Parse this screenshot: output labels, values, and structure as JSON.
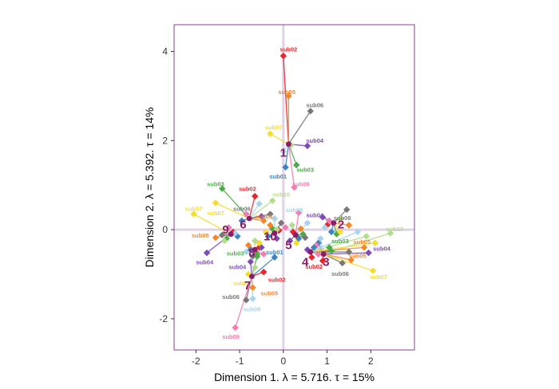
{
  "chart_data": {
    "type": "scatter",
    "xlabel": "Dimension 1.   λ = 5.716.  τ = 15%",
    "ylabel": "Dimension 2.   λ = 5.392.  τ = 14%",
    "xlim": [
      -2.5,
      3.0
    ],
    "ylim": [
      -2.7,
      4.6
    ],
    "x_ticks": [
      -2,
      -1,
      0,
      1,
      2
    ],
    "y_ticks": [
      -2,
      0,
      2,
      4
    ],
    "x_tick_labels": [
      "-2",
      "-1",
      "0",
      "1",
      "2"
    ],
    "y_tick_labels": [
      "-2",
      "0",
      "2",
      "4"
    ],
    "grid": false,
    "colors": {
      "sub01": "#3E83C4",
      "sub02": "#E8252D",
      "sub03": "#4FAA4A",
      "sub04": "#7B4BB6",
      "sub05": "#F2872B",
      "sub06": "#777777",
      "sub07": "#F5DC2E",
      "sub08": "#A8D3EA",
      "sub09": "#EE7FB0",
      "sub10": "#B4DC8E",
      "centroid": "#8B1C6A",
      "frame": "#8E3D9E",
      "origin_line": "#E2D2E8"
    },
    "points": [
      {
        "stimulus": "1",
        "cx": 0.12,
        "cy": 1.92,
        "label_x": 0.0,
        "label_y": 1.73,
        "subs": [
          {
            "sub": "sub01",
            "x": 0.05,
            "y": 1.4
          },
          {
            "sub": "sub02",
            "x": 0.0,
            "y": 3.9
          },
          {
            "sub": "sub03",
            "x": 0.3,
            "y": 1.45
          },
          {
            "sub": "sub04",
            "x": 0.55,
            "y": 1.88
          },
          {
            "sub": "sub05",
            "x": 0.12,
            "y": 3.0
          },
          {
            "sub": "sub06",
            "x": 0.62,
            "y": 2.66
          },
          {
            "sub": "sub07",
            "x": -0.3,
            "y": 2.15
          },
          {
            "sub": "sub08",
            "x": 0.0,
            "y": 1.75
          },
          {
            "sub": "sub09",
            "x": 0.25,
            "y": 0.95
          },
          {
            "sub": "sub10",
            "x": 0.18,
            "y": 1.9
          }
        ]
      },
      {
        "stimulus": "2",
        "cx": 1.15,
        "cy": 0.15,
        "label_x": 1.32,
        "label_y": 0.12,
        "subs": [
          {
            "sub": "sub01",
            "x": 1.1,
            "y": -0.05
          },
          {
            "sub": "sub02",
            "x": 1.0,
            "y": 0.1
          },
          {
            "sub": "sub03",
            "x": 1.22,
            "y": -0.1
          },
          {
            "sub": "sub04",
            "x": 0.9,
            "y": 0.28
          },
          {
            "sub": "sub05",
            "x": 1.5,
            "y": 0.1
          },
          {
            "sub": "sub06",
            "x": 1.45,
            "y": 0.45
          },
          {
            "sub": "sub07",
            "x": 1.3,
            "y": -0.05
          },
          {
            "sub": "sub08",
            "x": 0.95,
            "y": 0.05
          },
          {
            "sub": "sub09",
            "x": 1.05,
            "y": 0.2
          },
          {
            "sub": "sub10",
            "x": 1.3,
            "y": 0.25
          }
        ]
      },
      {
        "stimulus": "3",
        "cx": 0.92,
        "cy": -0.55,
        "label_x": 0.98,
        "label_y": -0.72,
        "subs": [
          {
            "sub": "sub01",
            "x": 0.8,
            "y": -0.3
          },
          {
            "sub": "sub02",
            "x": 0.9,
            "y": -0.7
          },
          {
            "sub": "sub03",
            "x": 1.05,
            "y": -0.4
          },
          {
            "sub": "sub04",
            "x": 1.95,
            "y": -0.52
          },
          {
            "sub": "sub05",
            "x": 1.55,
            "y": -0.68
          },
          {
            "sub": "sub06",
            "x": 1.35,
            "y": -0.75
          },
          {
            "sub": "sub07",
            "x": 2.05,
            "y": -0.92
          },
          {
            "sub": "sub08",
            "x": 0.85,
            "y": -0.2
          },
          {
            "sub": "sub09",
            "x": 0.75,
            "y": -0.35
          },
          {
            "sub": "sub10",
            "x": 2.45,
            "y": -0.08
          }
        ]
      },
      {
        "stimulus": "4",
        "cx": 0.62,
        "cy": -0.5,
        "label_x": 0.5,
        "label_y": -0.72,
        "subs": [
          {
            "sub": "sub01",
            "x": 0.7,
            "y": -0.4
          },
          {
            "sub": "sub02",
            "x": 0.65,
            "y": -0.62
          },
          {
            "sub": "sub03",
            "x": 1.1,
            "y": -0.48
          },
          {
            "sub": "sub04",
            "x": 0.55,
            "y": -0.45
          },
          {
            "sub": "sub05",
            "x": 1.85,
            "y": -0.4
          },
          {
            "sub": "sub06",
            "x": 1.5,
            "y": -0.5
          },
          {
            "sub": "sub07",
            "x": 2.1,
            "y": -0.3
          },
          {
            "sub": "sub08",
            "x": 1.7,
            "y": -0.05
          },
          {
            "sub": "sub09",
            "x": 0.8,
            "y": -0.55
          },
          {
            "sub": "sub10",
            "x": 1.9,
            "y": -0.15
          }
        ]
      },
      {
        "stimulus": "5",
        "cx": 0.28,
        "cy": -0.12,
        "label_x": 0.12,
        "label_y": -0.35,
        "subs": [
          {
            "sub": "sub01",
            "x": 0.35,
            "y": -0.2
          },
          {
            "sub": "sub02",
            "x": 0.22,
            "y": -0.05
          },
          {
            "sub": "sub03",
            "x": 0.45,
            "y": -0.1
          },
          {
            "sub": "sub04",
            "x": 0.15,
            "y": -0.25
          },
          {
            "sub": "sub05",
            "x": 0.4,
            "y": 0.02
          },
          {
            "sub": "sub06",
            "x": 0.5,
            "y": -0.18
          },
          {
            "sub": "sub07",
            "x": 0.3,
            "y": -0.3
          },
          {
            "sub": "sub08",
            "x": 0.55,
            "y": 0.15
          },
          {
            "sub": "sub09",
            "x": 0.35,
            "y": 0.38
          },
          {
            "sub": "sub10",
            "x": 0.2,
            "y": 0.1
          }
        ]
      },
      {
        "stimulus": "6",
        "cx": -0.78,
        "cy": 0.25,
        "label_x": -0.92,
        "label_y": 0.12,
        "subs": [
          {
            "sub": "sub01",
            "x": -0.95,
            "y": 0.2
          },
          {
            "sub": "sub02",
            "x": -0.65,
            "y": 0.75
          },
          {
            "sub": "sub03",
            "x": -1.4,
            "y": 0.92
          },
          {
            "sub": "sub04",
            "x": -0.5,
            "y": 0.3
          },
          {
            "sub": "sub05",
            "x": -0.45,
            "y": 0.2
          },
          {
            "sub": "sub06",
            "x": -0.3,
            "y": 0.35
          },
          {
            "sub": "sub07",
            "x": -1.55,
            "y": 0.6
          },
          {
            "sub": "sub08",
            "x": -0.55,
            "y": 0.58
          },
          {
            "sub": "sub09",
            "x": -0.85,
            "y": 0.35
          },
          {
            "sub": "sub10",
            "x": -0.25,
            "y": 0.65
          }
        ]
      },
      {
        "stimulus": "7",
        "cx": -0.72,
        "cy": -1.05,
        "label_x": -0.82,
        "label_y": -1.25,
        "subs": [
          {
            "sub": "sub01",
            "x": -0.2,
            "y": -0.62
          },
          {
            "sub": "sub02",
            "x": -0.45,
            "y": -0.95
          },
          {
            "sub": "sub03",
            "x": -0.6,
            "y": -0.6
          },
          {
            "sub": "sub04",
            "x": -0.75,
            "y": -0.72
          },
          {
            "sub": "sub05",
            "x": -0.7,
            "y": -1.3
          },
          {
            "sub": "sub06",
            "x": -0.85,
            "y": -1.58
          },
          {
            "sub": "sub07",
            "x": -0.8,
            "y": -1.0
          },
          {
            "sub": "sub08",
            "x": -0.7,
            "y": -1.55
          },
          {
            "sub": "sub09",
            "x": -1.1,
            "y": -2.2
          },
          {
            "sub": "sub10",
            "x": -0.65,
            "y": -0.85
          }
        ]
      },
      {
        "stimulus": "8",
        "cx": -0.65,
        "cy": -0.45,
        "label_x": -0.72,
        "label_y": -0.52,
        "subs": [
          {
            "sub": "sub01",
            "x": -0.75,
            "y": -0.45
          },
          {
            "sub": "sub02",
            "x": -0.55,
            "y": -0.4
          },
          {
            "sub": "sub03",
            "x": -0.6,
            "y": -0.55
          },
          {
            "sub": "sub04",
            "x": -0.5,
            "y": -0.4
          },
          {
            "sub": "sub05",
            "x": -0.8,
            "y": -0.35
          },
          {
            "sub": "sub06",
            "x": -0.7,
            "y": -0.6
          },
          {
            "sub": "sub07",
            "x": -0.55,
            "y": -0.3
          },
          {
            "sub": "sub08",
            "x": -0.85,
            "y": -0.5
          },
          {
            "sub": "sub09",
            "x": -0.45,
            "y": -0.55
          },
          {
            "sub": "sub10",
            "x": -0.65,
            "y": -0.25
          }
        ]
      },
      {
        "stimulus": "9",
        "cx": -1.2,
        "cy": -0.1,
        "label_x": -1.32,
        "label_y": 0.0,
        "subs": [
          {
            "sub": "sub01",
            "x": -1.05,
            "y": -0.15
          },
          {
            "sub": "sub02",
            "x": -1.15,
            "y": -0.05
          },
          {
            "sub": "sub03",
            "x": -1.3,
            "y": -0.2
          },
          {
            "sub": "sub04",
            "x": -1.75,
            "y": -0.52
          },
          {
            "sub": "sub05",
            "x": -1.55,
            "y": -0.18
          },
          {
            "sub": "sub06",
            "x": -1.4,
            "y": -0.12
          },
          {
            "sub": "sub07",
            "x": -2.05,
            "y": 0.35
          },
          {
            "sub": "sub08",
            "x": -1.1,
            "y": -0.08
          },
          {
            "sub": "sub09",
            "x": -1.25,
            "y": 0.05
          },
          {
            "sub": "sub10",
            "x": -1.35,
            "y": -0.25
          }
        ]
      },
      {
        "stimulus": "10",
        "cx": -0.2,
        "cy": -0.08,
        "label_x": -0.3,
        "label_y": -0.15,
        "subs": [
          {
            "sub": "sub01",
            "x": -0.35,
            "y": -0.15
          },
          {
            "sub": "sub02",
            "x": -0.1,
            "y": -0.02
          },
          {
            "sub": "sub03",
            "x": -0.25,
            "y": 0.02
          },
          {
            "sub": "sub04",
            "x": -0.15,
            "y": -0.2
          },
          {
            "sub": "sub05",
            "x": -0.3,
            "y": 0.1
          },
          {
            "sub": "sub06",
            "x": -0.05,
            "y": 0.15
          },
          {
            "sub": "sub07",
            "x": -0.4,
            "y": -0.05
          },
          {
            "sub": "sub08",
            "x": -0.2,
            "y": 0.25
          },
          {
            "sub": "sub09",
            "x": 0.05,
            "y": 0.05
          },
          {
            "sub": "sub10",
            "x": -0.15,
            "y": 0.0
          }
        ]
      }
    ],
    "visible_sub_labels": [
      {
        "sub": "sub02",
        "x": 0.12,
        "y": 4.05
      },
      {
        "sub": "sub05",
        "x": 0.08,
        "y": 3.1
      },
      {
        "sub": "sub06",
        "x": 0.72,
        "y": 2.8
      },
      {
        "sub": "sub07",
        "x": -0.22,
        "y": 2.3
      },
      {
        "sub": "sub04",
        "x": 0.72,
        "y": 2.01
      },
      {
        "sub": "sub03",
        "x": 0.5,
        "y": 1.35
      },
      {
        "sub": "sub01",
        "x": -0.12,
        "y": 1.2
      },
      {
        "sub": "sub09",
        "x": 0.4,
        "y": 1.03
      },
      {
        "sub": "sub03",
        "x": -1.55,
        "y": 1.03
      },
      {
        "sub": "sub02",
        "x": -0.82,
        "y": 0.92
      },
      {
        "sub": "sub07",
        "x": -2.05,
        "y": 0.48
      },
      {
        "sub": "sub07",
        "x": -1.55,
        "y": 0.38
      },
      {
        "sub": "sub05",
        "x": -1.9,
        "y": -0.12
      },
      {
        "sub": "sub04",
        "x": -1.8,
        "y": -0.72
      },
      {
        "sub": "sub03",
        "x": -1.1,
        "y": -0.53
      },
      {
        "sub": "sub04",
        "x": -1.05,
        "y": -0.83
      },
      {
        "sub": "sub07",
        "x": -0.95,
        "y": -1.2
      },
      {
        "sub": "sub06",
        "x": -1.2,
        "y": -1.5
      },
      {
        "sub": "sub08",
        "x": -0.72,
        "y": -1.78
      },
      {
        "sub": "sub09",
        "x": -1.2,
        "y": -2.4
      },
      {
        "sub": "sub05",
        "x": -0.32,
        "y": -1.42
      },
      {
        "sub": "sub02",
        "x": -0.15,
        "y": -1.12
      },
      {
        "sub": "sub01",
        "x": -0.2,
        "y": -0.5
      },
      {
        "sub": "sub04",
        "x": 0.72,
        "y": 0.33
      },
      {
        "sub": "sub06",
        "x": 1.35,
        "y": 0.27
      },
      {
        "sub": "sub03",
        "x": 1.3,
        "y": -0.25
      },
      {
        "sub": "sub05",
        "x": 1.8,
        "y": -0.27
      },
      {
        "sub": "sub10",
        "x": 2.55,
        "y": 0.02
      },
      {
        "sub": "sub04",
        "x": 2.25,
        "y": -0.42
      },
      {
        "sub": "sub07",
        "x": 2.18,
        "y": -1.05
      },
      {
        "sub": "sub06",
        "x": 1.3,
        "y": -0.98
      },
      {
        "sub": "sub02",
        "x": 0.7,
        "y": -0.82
      },
      {
        "sub": "sub05",
        "x": 1.7,
        "y": -0.58
      },
      {
        "sub": "sub10",
        "x": -0.05,
        "y": 0.8
      },
      {
        "sub": "sub06",
        "x": -0.95,
        "y": 0.48
      },
      {
        "sub": "sub05",
        "x": -0.45,
        "y": 0.3
      },
      {
        "sub": "sub08",
        "x": 0.25,
        "y": 0.45
      }
    ]
  }
}
